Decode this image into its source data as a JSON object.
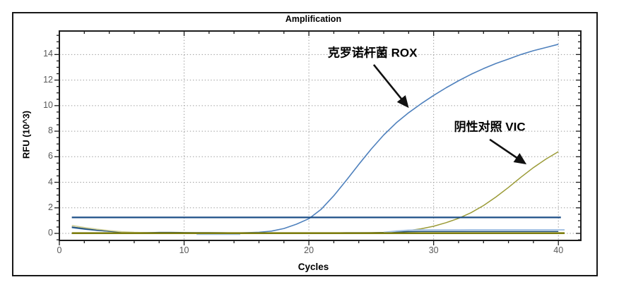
{
  "chart_data": {
    "type": "line",
    "title": "Amplification",
    "xlabel": "Cycles",
    "ylabel": "RFU (10^3)",
    "xlim": [
      0,
      41.8
    ],
    "ylim": [
      -0.55,
      15.84
    ],
    "x_major_ticks": [
      0,
      10,
      20,
      30,
      40
    ],
    "x_minor_step": 2,
    "y_major_ticks": [
      0,
      2,
      4,
      6,
      8,
      10,
      12,
      14
    ],
    "y_minor_step": 0.5,
    "grid": "dotted-at-major-ticks",
    "grid_color": "#9a9a9a",
    "axis_color": "#1c1c1c",
    "tick_label_color": "#595959",
    "legend": "none",
    "threshold": {
      "y": 1.25,
      "x_start": 1,
      "x_end": 40.2,
      "color": "#1c4f87",
      "width": 2.2
    },
    "series": [
      {
        "name": "克罗诺杆菌 ROX",
        "color": "#4f81bd",
        "width": 1.6,
        "x": [
          1,
          2,
          3,
          4,
          5,
          6,
          7,
          8,
          9,
          10,
          11,
          12,
          13,
          14,
          15,
          16,
          17,
          18,
          19,
          20,
          21,
          22,
          23,
          24,
          25,
          26,
          27,
          28,
          29,
          30,
          31,
          32,
          33,
          34,
          35,
          36,
          37,
          38,
          39,
          40
        ],
        "y": [
          0.45,
          0.33,
          0.24,
          0.16,
          0.1,
          0.06,
          0.04,
          0.03,
          0.02,
          0.02,
          0.02,
          0.02,
          0.02,
          0.03,
          0.05,
          0.09,
          0.18,
          0.38,
          0.72,
          1.15,
          1.9,
          2.95,
          4.15,
          5.4,
          6.6,
          7.7,
          8.65,
          9.45,
          10.15,
          10.8,
          11.4,
          11.95,
          12.45,
          12.9,
          13.3,
          13.65,
          14.0,
          14.3,
          14.55,
          14.8
        ]
      },
      {
        "name": "阴性对照 VIC",
        "color": "#9b9b37",
        "width": 1.5,
        "x": [
          1,
          2,
          3,
          4,
          5,
          6,
          7,
          8,
          9,
          10,
          11,
          12,
          13,
          14,
          15,
          16,
          17,
          18,
          19,
          20,
          21,
          22,
          23,
          24,
          25,
          26,
          27,
          28,
          29,
          30,
          31,
          32,
          33,
          34,
          35,
          36,
          37,
          38,
          39,
          40
        ],
        "y": [
          0.5,
          0.38,
          0.27,
          0.17,
          0.1,
          0.07,
          0.05,
          0.04,
          0.04,
          0.03,
          0.03,
          0.03,
          0.03,
          0.03,
          0.03,
          0.03,
          0.03,
          0.03,
          0.03,
          0.03,
          0.03,
          0.03,
          0.04,
          0.04,
          0.05,
          0.08,
          0.13,
          0.22,
          0.36,
          0.56,
          0.84,
          1.18,
          1.62,
          2.18,
          2.85,
          3.6,
          4.4,
          5.15,
          5.82,
          6.4
        ]
      },
      {
        "name": "baseline-navy",
        "color": "#1f4e79",
        "width": 1.4,
        "x": [
          1,
          2,
          3,
          4,
          5,
          6,
          7,
          8,
          9,
          10,
          11,
          12,
          13,
          14,
          15,
          16,
          17,
          18,
          19,
          20,
          21,
          22,
          23,
          24,
          25,
          26,
          27,
          28,
          29,
          30,
          31,
          32,
          33,
          34,
          35,
          36,
          37,
          38,
          39,
          40
        ],
        "y": [
          0.5,
          0.36,
          0.25,
          0.16,
          0.1,
          0.07,
          0.06,
          0.08,
          0.08,
          0.07,
          0.06,
          0.06,
          0.05,
          0.04,
          0.04,
          0.03,
          0.03,
          0.03,
          0.03,
          0.04,
          0.04,
          0.04,
          0.05,
          0.05,
          0.05,
          0.07,
          0.1,
          0.14,
          0.15,
          0.15,
          0.15,
          0.15,
          0.15,
          0.15,
          0.15,
          0.15,
          0.15,
          0.15,
          0.15,
          0.15
        ]
      },
      {
        "name": "baseline-khaki",
        "color": "#cfcf9a",
        "width": 1.6,
        "x": [
          1,
          2,
          3,
          4,
          5,
          6,
          7,
          8,
          9,
          10,
          11,
          12,
          13,
          14,
          15,
          16,
          17,
          18,
          19,
          20,
          21,
          22,
          23,
          24,
          25,
          26,
          27,
          28,
          29,
          30,
          31,
          32,
          33,
          34,
          35,
          36,
          37,
          38,
          39,
          40
        ],
        "y": [
          0.62,
          0.46,
          0.33,
          0.22,
          0.13,
          0.08,
          0.05,
          0.04,
          0.03,
          0.03,
          0.02,
          0.02,
          0.02,
          0.02,
          0.02,
          0.02,
          0.02,
          0.02,
          0.02,
          0.02,
          0.02,
          0.02,
          0.02,
          0.02,
          0.02,
          0.02,
          0.02,
          0.02,
          0.02,
          0.02,
          0.02,
          0.02,
          0.02,
          0.02,
          0.02,
          0.02,
          0.02,
          0.02,
          0.02,
          0.02
        ]
      },
      {
        "name": "baseline-lightblue",
        "color": "#a8c4e5",
        "width": 2,
        "x": [
          26,
          27,
          28,
          29,
          30,
          31,
          32,
          33,
          34,
          35,
          36,
          37,
          38,
          39,
          40,
          40.5
        ],
        "y": [
          0.08,
          0.18,
          0.25,
          0.27,
          0.27,
          0.27,
          0.27,
          0.28,
          0.28,
          0.28,
          0.28,
          0.28,
          0.28,
          0.28,
          0.28,
          0.28
        ]
      },
      {
        "name": "baseline-lightblue-early",
        "color": "#a8c4e5",
        "width": 2,
        "x": [
          11,
          14.5
        ],
        "y": [
          -0.07,
          -0.07
        ]
      },
      {
        "name": "baseline-olive-flat",
        "color": "#7d7d0f",
        "width": 2.6,
        "x": [
          1,
          40.5
        ],
        "y": [
          0.02,
          0.02
        ]
      }
    ],
    "annotations": [
      {
        "text": "克罗诺杆菌 ROX",
        "text_x": 25.1,
        "text_y": 14.25,
        "arrow": {
          "x1": 25.2,
          "y1": 13.2,
          "x2": 27.9,
          "y2": 9.95
        }
      },
      {
        "text": "阴性对照 VIC",
        "text_x": 34.5,
        "text_y": 8.45,
        "arrow": {
          "x1": 34.5,
          "y1": 7.35,
          "x2": 37.3,
          "y2": 5.5
        }
      }
    ]
  }
}
